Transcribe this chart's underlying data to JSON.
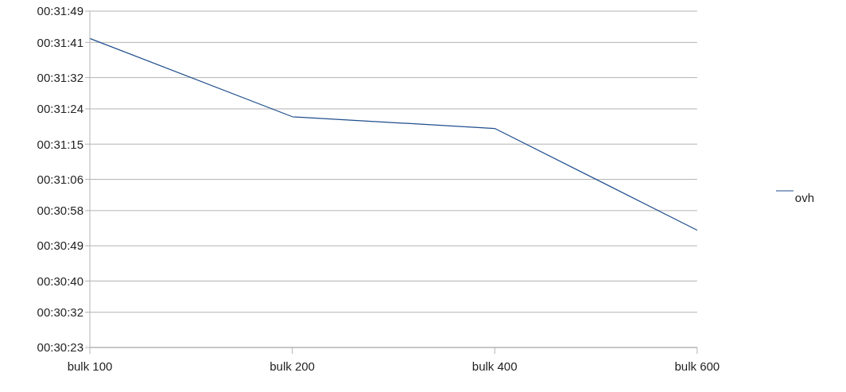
{
  "chart_data": {
    "type": "line",
    "categories": [
      "bulk 100",
      "bulk 200",
      "bulk 400",
      "bulk 600"
    ],
    "series": [
      {
        "name": "ovh",
        "color": "#1f4e8c",
        "values": [
          1902,
          1882,
          1879,
          1853
        ]
      }
    ],
    "ylim": [
      1823,
      1909
    ],
    "yticks": [
      {
        "value": 1823,
        "label": "00:30:23"
      },
      {
        "value": 1832,
        "label": "00:30:32"
      },
      {
        "value": 1840,
        "label": "00:30:40"
      },
      {
        "value": 1849,
        "label": "00:30:49"
      },
      {
        "value": 1858,
        "label": "00:30:58"
      },
      {
        "value": 1866,
        "label": "00:31:06"
      },
      {
        "value": 1875,
        "label": "00:31:15"
      },
      {
        "value": 1884,
        "label": "00:31:24"
      },
      {
        "value": 1892,
        "label": "00:31:32"
      },
      {
        "value": 1901,
        "label": "00:31:41"
      },
      {
        "value": 1909,
        "label": "00:31:49"
      }
    ],
    "grid": "y",
    "legend": "right",
    "marker": "none",
    "line_style": "solid"
  }
}
